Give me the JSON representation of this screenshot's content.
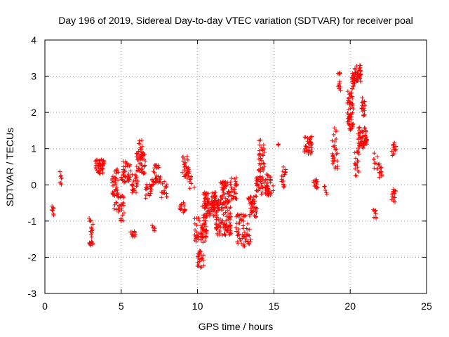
{
  "chart_data": {
    "type": "scatter",
    "title": "Day 196 of 2019, Sidereal Day-to-day VTEC variation (SDTVAR) for receiver poal",
    "xlabel": "GPS time / hours",
    "ylabel": "SDTVAR / TECUs",
    "xlim": [
      0,
      25
    ],
    "ylim": [
      -3,
      4
    ],
    "xticks": [
      0,
      5,
      10,
      15,
      20,
      25
    ],
    "yticks": [
      -3,
      -2,
      -1,
      0,
      1,
      2,
      3,
      4
    ],
    "xtick_labels": [
      "0",
      "5",
      "10",
      "15",
      "20",
      "25"
    ],
    "ytick_labels": [
      "-3",
      "-2",
      "-1",
      "0",
      "1",
      "2",
      "3",
      "4"
    ],
    "grid": true,
    "marker": "+",
    "color": "#ff0000",
    "series": [
      {
        "name": "SDTVAR",
        "clusters": [
          {
            "x": [
              0.45,
              0.6
            ],
            "y": [
              -0.85,
              -0.55
            ],
            "n": 8
          },
          {
            "x": [
              0.95,
              1.1
            ],
            "y": [
              0.0,
              0.4
            ],
            "n": 8
          },
          {
            "x": [
              2.9,
              3.15
            ],
            "y": [
              -1.75,
              -0.9
            ],
            "n": 22
          },
          {
            "x": [
              3.3,
              3.9
            ],
            "y": [
              0.3,
              0.7
            ],
            "n": 45
          },
          {
            "x": [
              4.4,
              4.8
            ],
            "y": [
              -0.7,
              0.45
            ],
            "n": 40
          },
          {
            "x": [
              4.8,
              5.2
            ],
            "y": [
              -1.0,
              -0.3
            ],
            "n": 25
          },
          {
            "x": [
              5.0,
              5.6
            ],
            "y": [
              0.05,
              0.65
            ],
            "n": 40
          },
          {
            "x": [
              5.6,
              5.95
            ],
            "y": [
              -1.45,
              -1.2
            ],
            "n": 10
          },
          {
            "x": [
              5.7,
              6.1
            ],
            "y": [
              -0.3,
              0.3
            ],
            "n": 22
          },
          {
            "x": [
              6.0,
              6.6
            ],
            "y": [
              0.3,
              0.9
            ],
            "n": 50
          },
          {
            "x": [
              6.0,
              6.4
            ],
            "y": [
              0.9,
              1.25
            ],
            "n": 10
          },
          {
            "x": [
              6.6,
              7.0
            ],
            "y": [
              -0.4,
              0.05
            ],
            "n": 20
          },
          {
            "x": [
              7.0,
              7.6
            ],
            "y": [
              0.0,
              0.55
            ],
            "n": 32
          },
          {
            "x": [
              7.0,
              7.2
            ],
            "y": [
              -1.3,
              -1.05
            ],
            "n": 6
          },
          {
            "x": [
              7.6,
              8.0
            ],
            "y": [
              -0.35,
              0.1
            ],
            "n": 15
          },
          {
            "x": [
              8.8,
              9.2
            ],
            "y": [
              -0.8,
              -0.45
            ],
            "n": 15
          },
          {
            "x": [
              9.0,
              9.4
            ],
            "y": [
              0.2,
              0.8
            ],
            "n": 22
          },
          {
            "x": [
              9.3,
              9.8
            ],
            "y": [
              -0.1,
              0.45
            ],
            "n": 15
          },
          {
            "x": [
              9.8,
              10.2
            ],
            "y": [
              -1.6,
              -0.9
            ],
            "n": 20
          },
          {
            "x": [
              10.0,
              10.4
            ],
            "y": [
              -2.3,
              -1.8
            ],
            "n": 25
          },
          {
            "x": [
              10.2,
              10.6
            ],
            "y": [
              -1.6,
              -0.9
            ],
            "n": 40
          },
          {
            "x": [
              10.3,
              11.2
            ],
            "y": [
              -0.9,
              -0.2
            ],
            "n": 90
          },
          {
            "x": [
              11.2,
              12.2
            ],
            "y": [
              -1.4,
              -0.4
            ],
            "n": 110
          },
          {
            "x": [
              11.5,
              12.3
            ],
            "y": [
              -0.4,
              0.1
            ],
            "n": 40
          },
          {
            "x": [
              12.2,
              12.6
            ],
            "y": [
              -0.4,
              0.2
            ],
            "n": 20
          },
          {
            "x": [
              12.5,
              13.5
            ],
            "y": [
              -1.7,
              -0.8
            ],
            "n": 60
          },
          {
            "x": [
              13.3,
              13.9
            ],
            "y": [
              -0.9,
              -0.3
            ],
            "n": 40
          },
          {
            "x": [
              13.8,
              14.3
            ],
            "y": [
              -0.3,
              0.3
            ],
            "n": 30
          },
          {
            "x": [
              14.0,
              14.4
            ],
            "y": [
              0.3,
              1.25
            ],
            "n": 35
          },
          {
            "x": [
              14.4,
              15.0
            ],
            "y": [
              -0.3,
              0.3
            ],
            "n": 40
          },
          {
            "x": [
              15.2,
              15.3
            ],
            "y": [
              1.0,
              1.15
            ],
            "n": 3
          },
          {
            "x": [
              15.5,
              15.8
            ],
            "y": [
              -0.1,
              0.6
            ],
            "n": 18
          },
          {
            "x": [
              17.0,
              17.5
            ],
            "y": [
              0.85,
              1.35
            ],
            "n": 35
          },
          {
            "x": [
              17.6,
              17.9
            ],
            "y": [
              -0.1,
              0.15
            ],
            "n": 15
          },
          {
            "x": [
              18.3,
              18.5
            ],
            "y": [
              -0.3,
              0.2
            ],
            "n": 6
          },
          {
            "x": [
              18.8,
              19.2
            ],
            "y": [
              0.4,
              1.6
            ],
            "n": 30
          },
          {
            "x": [
              19.2,
              19.4
            ],
            "y": [
              2.6,
              3.2
            ],
            "n": 12
          },
          {
            "x": [
              19.8,
              20.2
            ],
            "y": [
              1.5,
              2.7
            ],
            "n": 60
          },
          {
            "x": [
              20.1,
              20.3
            ],
            "y": [
              2.7,
              3.1
            ],
            "n": 18
          },
          {
            "x": [
              20.3,
              20.7
            ],
            "y": [
              2.85,
              3.3
            ],
            "n": 40
          },
          {
            "x": [
              20.5,
              21.1
            ],
            "y": [
              1.0,
              1.6
            ],
            "n": 55
          },
          {
            "x": [
              20.3,
              20.6
            ],
            "y": [
              0.2,
              1.0
            ],
            "n": 20
          },
          {
            "x": [
              20.7,
              21.0
            ],
            "y": [
              1.9,
              2.4
            ],
            "n": 18
          },
          {
            "x": [
              21.5,
              21.7
            ],
            "y": [
              -1.0,
              -0.65
            ],
            "n": 8
          },
          {
            "x": [
              21.5,
              21.8
            ],
            "y": [
              0.3,
              1.0
            ],
            "n": 10
          },
          {
            "x": [
              21.8,
              22.1
            ],
            "y": [
              0.2,
              0.6
            ],
            "n": 12
          },
          {
            "x": [
              22.7,
              23.0
            ],
            "y": [
              -0.5,
              -0.1
            ],
            "n": 14
          },
          {
            "x": [
              22.7,
              23.0
            ],
            "y": [
              0.8,
              1.2
            ],
            "n": 14
          }
        ]
      }
    ]
  }
}
